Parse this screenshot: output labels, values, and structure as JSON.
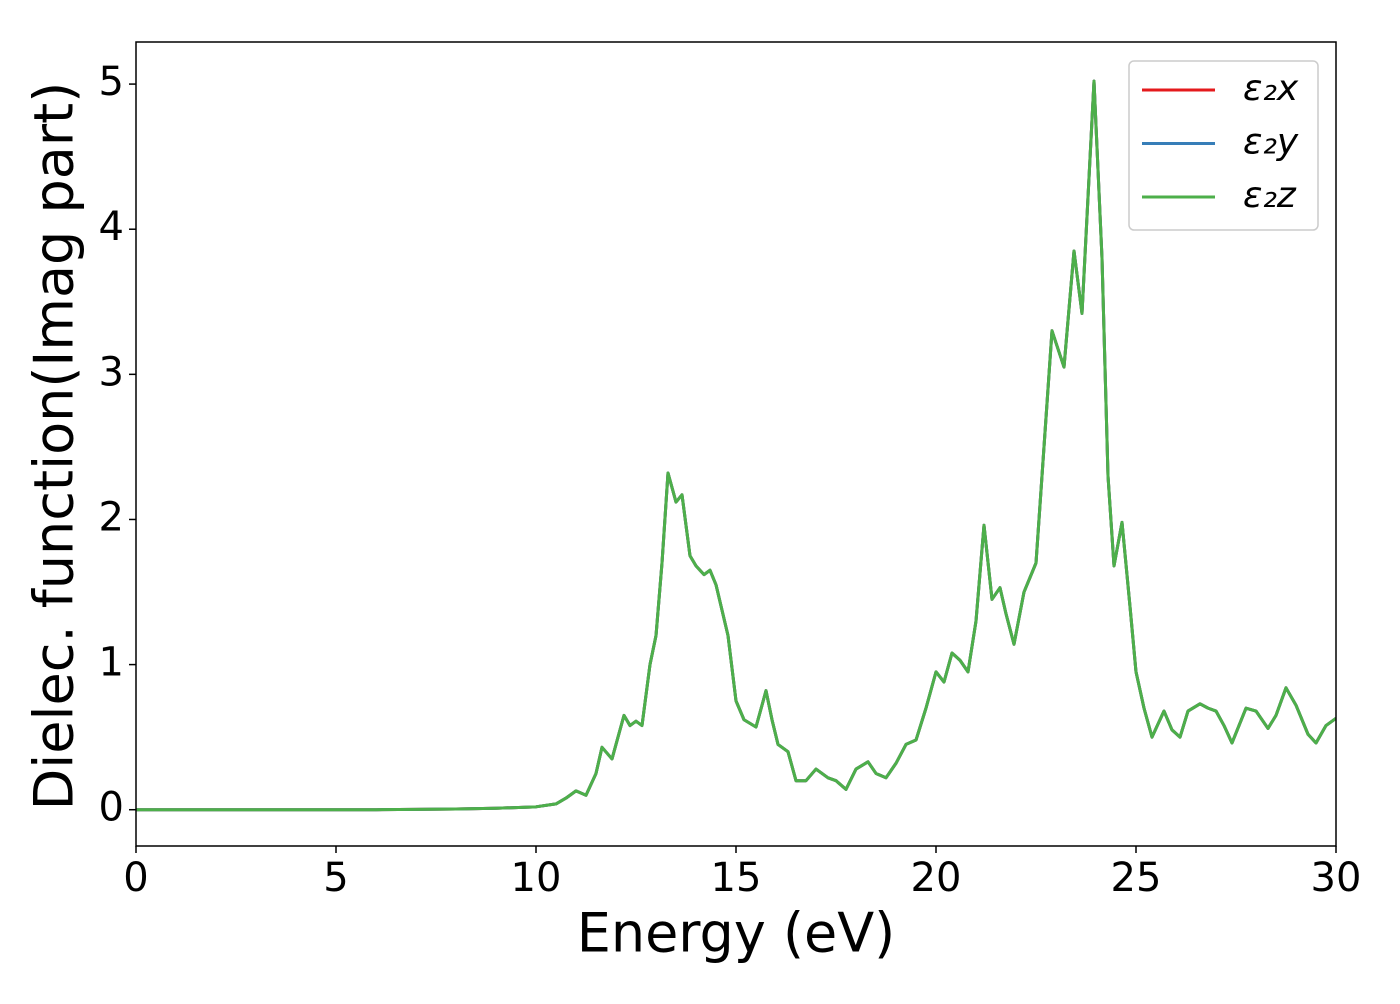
{
  "chart_data": {
    "type": "line",
    "xlabel": "Energy (eV)",
    "ylabel": "Dielec. function(Imag part)",
    "x": [
      0,
      1,
      2,
      3,
      4,
      5,
      6,
      7,
      8,
      9,
      10,
      10.5,
      10.75,
      11,
      11.25,
      11.5,
      11.65,
      11.9,
      12.1,
      12.2,
      12.35,
      12.5,
      12.65,
      12.85,
      13.0,
      13.15,
      13.3,
      13.5,
      13.65,
      13.85,
      14.0,
      14.2,
      14.35,
      14.5,
      14.8,
      15.0,
      15.2,
      15.5,
      15.75,
      15.9,
      16.05,
      16.3,
      16.5,
      16.75,
      17.0,
      17.3,
      17.5,
      17.75,
      18.0,
      18.3,
      18.5,
      18.75,
      19.0,
      19.25,
      19.5,
      19.75,
      20.0,
      20.2,
      20.4,
      20.6,
      20.8,
      21.0,
      21.2,
      21.4,
      21.6,
      21.75,
      21.95,
      22.2,
      22.5,
      22.7,
      22.9,
      23.2,
      23.45,
      23.65,
      23.95,
      24.15,
      24.3,
      24.45,
      24.65,
      24.85,
      25.0,
      25.2,
      25.4,
      25.7,
      25.9,
      26.1,
      26.3,
      26.6,
      26.8,
      27.0,
      27.2,
      27.4,
      27.75,
      28.0,
      28.3,
      28.5,
      28.75,
      29.0,
      29.3,
      29.5,
      29.75,
      30
    ],
    "series": [
      {
        "name": "ε₂x",
        "color": "#e41a1c",
        "values": [
          0,
          0,
          0,
          0,
          0,
          0,
          0,
          0.002,
          0.005,
          0.01,
          0.02,
          0.04,
          0.08,
          0.13,
          0.1,
          0.25,
          0.43,
          0.35,
          0.55,
          0.65,
          0.58,
          0.61,
          0.58,
          1.0,
          1.2,
          1.7,
          2.32,
          2.12,
          2.17,
          1.75,
          1.68,
          1.62,
          1.65,
          1.55,
          1.2,
          0.75,
          0.62,
          0.57,
          0.82,
          0.62,
          0.45,
          0.4,
          0.2,
          0.2,
          0.28,
          0.22,
          0.2,
          0.14,
          0.28,
          0.33,
          0.25,
          0.22,
          0.32,
          0.45,
          0.48,
          0.7,
          0.95,
          0.88,
          1.08,
          1.03,
          0.95,
          1.3,
          1.96,
          1.45,
          1.53,
          1.35,
          1.14,
          1.5,
          1.7,
          2.5,
          3.3,
          3.05,
          3.85,
          3.42,
          5.02,
          3.8,
          2.3,
          1.68,
          1.98,
          1.4,
          0.95,
          0.7,
          0.5,
          0.68,
          0.55,
          0.5,
          0.68,
          0.73,
          0.7,
          0.68,
          0.58,
          0.46,
          0.7,
          0.68,
          0.56,
          0.65,
          0.84,
          0.72,
          0.52,
          0.46,
          0.58,
          0.63
        ]
      },
      {
        "name": "ε₂y",
        "color": "#377eb8",
        "values": [
          0,
          0,
          0,
          0,
          0,
          0,
          0,
          0.002,
          0.005,
          0.01,
          0.02,
          0.04,
          0.08,
          0.13,
          0.1,
          0.25,
          0.43,
          0.35,
          0.55,
          0.65,
          0.58,
          0.61,
          0.58,
          1.0,
          1.2,
          1.7,
          2.32,
          2.12,
          2.17,
          1.75,
          1.68,
          1.62,
          1.65,
          1.55,
          1.2,
          0.75,
          0.62,
          0.57,
          0.82,
          0.62,
          0.45,
          0.4,
          0.2,
          0.2,
          0.28,
          0.22,
          0.2,
          0.14,
          0.28,
          0.33,
          0.25,
          0.22,
          0.32,
          0.45,
          0.48,
          0.7,
          0.95,
          0.88,
          1.08,
          1.03,
          0.95,
          1.3,
          1.96,
          1.45,
          1.53,
          1.35,
          1.14,
          1.5,
          1.7,
          2.5,
          3.3,
          3.05,
          3.85,
          3.42,
          5.02,
          3.8,
          2.3,
          1.68,
          1.98,
          1.4,
          0.95,
          0.7,
          0.5,
          0.68,
          0.55,
          0.5,
          0.68,
          0.73,
          0.7,
          0.68,
          0.58,
          0.46,
          0.7,
          0.68,
          0.56,
          0.65,
          0.84,
          0.72,
          0.52,
          0.46,
          0.58,
          0.63
        ]
      },
      {
        "name": "ε₂z",
        "color": "#4daf4a",
        "values": [
          0,
          0,
          0,
          0,
          0,
          0,
          0,
          0.002,
          0.005,
          0.01,
          0.02,
          0.04,
          0.08,
          0.13,
          0.1,
          0.25,
          0.43,
          0.35,
          0.55,
          0.65,
          0.58,
          0.61,
          0.58,
          1.0,
          1.2,
          1.7,
          2.32,
          2.12,
          2.17,
          1.75,
          1.68,
          1.62,
          1.65,
          1.55,
          1.2,
          0.75,
          0.62,
          0.57,
          0.82,
          0.62,
          0.45,
          0.4,
          0.2,
          0.2,
          0.28,
          0.22,
          0.2,
          0.14,
          0.28,
          0.33,
          0.25,
          0.22,
          0.32,
          0.45,
          0.48,
          0.7,
          0.95,
          0.88,
          1.08,
          1.03,
          0.95,
          1.3,
          1.96,
          1.45,
          1.53,
          1.35,
          1.14,
          1.5,
          1.7,
          2.5,
          3.3,
          3.05,
          3.85,
          3.42,
          5.02,
          3.8,
          2.3,
          1.68,
          1.98,
          1.4,
          0.95,
          0.7,
          0.5,
          0.68,
          0.55,
          0.5,
          0.68,
          0.73,
          0.7,
          0.68,
          0.58,
          0.46,
          0.7,
          0.68,
          0.56,
          0.65,
          0.84,
          0.72,
          0.52,
          0.46,
          0.58,
          0.63
        ]
      }
    ],
    "xlim": [
      0,
      30
    ],
    "xticks": [
      0,
      5,
      10,
      15,
      20,
      25,
      30
    ],
    "ylim": [
      -0.25,
      5.29
    ],
    "yticks": [
      0,
      1,
      2,
      3,
      4,
      5
    ],
    "grid": false,
    "legend": "upper right"
  }
}
